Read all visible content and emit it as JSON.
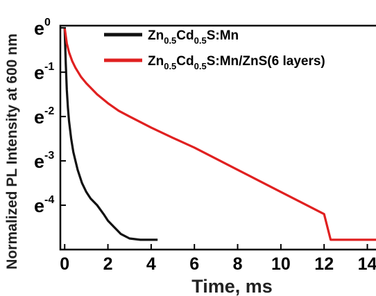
{
  "chart_data": {
    "type": "line",
    "xlabel": "Time, ms",
    "ylabel": "Normalized PL Intensity at 600 nm",
    "xlim": [
      -0.2,
      14.4
    ],
    "ylim": [
      -5.0,
      0.05
    ],
    "y_scale": "log (base e)",
    "x_ticks": [
      0,
      2,
      4,
      6,
      8,
      10,
      12,
      14
    ],
    "y_ticks": [
      {
        "value": 0,
        "base": "e",
        "exp": "0"
      },
      {
        "value": -1,
        "base": "e",
        "exp": "-1"
      },
      {
        "value": -2,
        "base": "e",
        "exp": "-2"
      },
      {
        "value": -3,
        "base": "e",
        "exp": "-3"
      },
      {
        "value": -4,
        "base": "e",
        "exp": "-4"
      }
    ],
    "legend_position": "top-right",
    "series": [
      {
        "name_parts": {
          "a": "Zn",
          "a_sub": "0.5",
          "b": "Cd",
          "b_sub": "0.5",
          "c": "S:Mn"
        },
        "color": "#111111",
        "x": [
          0,
          0.05,
          0.1,
          0.15,
          0.2,
          0.3,
          0.4,
          0.5,
          0.6,
          0.8,
          1.0,
          1.2,
          1.5,
          1.8,
          2.0,
          2.3,
          2.6,
          3.0,
          3.5,
          4.0,
          4.3
        ],
        "y": [
          0,
          -0.8,
          -1.4,
          -1.8,
          -2.1,
          -2.5,
          -2.8,
          -3.0,
          -3.2,
          -3.5,
          -3.7,
          -3.85,
          -4.0,
          -4.2,
          -4.35,
          -4.5,
          -4.65,
          -4.75,
          -4.78,
          -4.78,
          -4.78
        ]
      },
      {
        "name_parts": {
          "a": "Zn",
          "a_sub": "0.5",
          "b": "Cd",
          "b_sub": "0.5",
          "c": "S:Mn/ZnS(6 layers)"
        },
        "color": "#e02020",
        "x": [
          0,
          0.1,
          0.2,
          0.35,
          0.5,
          0.75,
          1.0,
          1.5,
          2.0,
          2.5,
          3.0,
          4.0,
          5.0,
          6.0,
          7.0,
          8.0,
          9.0,
          10.0,
          11.0,
          12.0,
          12.3,
          13.0,
          14.0,
          14.4
        ],
        "y": [
          0,
          -0.35,
          -0.55,
          -0.75,
          -0.9,
          -1.1,
          -1.25,
          -1.5,
          -1.7,
          -1.87,
          -2.0,
          -2.25,
          -2.48,
          -2.7,
          -2.95,
          -3.2,
          -3.45,
          -3.7,
          -3.95,
          -4.2,
          -4.78,
          -4.78,
          -4.78,
          -4.78
        ]
      }
    ]
  }
}
